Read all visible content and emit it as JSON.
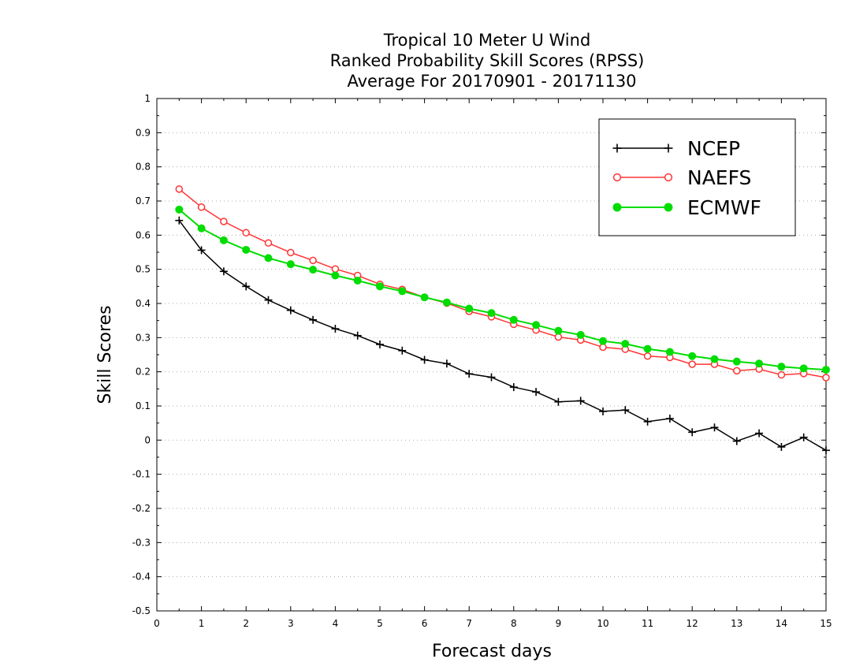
{
  "chart_data": {
    "type": "line",
    "title": [
      "Tropical 10 Meter U Wind",
      "Ranked Probability Skill Scores (RPSS)",
      "Average For 20170901 - 20171130"
    ],
    "xlabel": "Forecast days",
    "ylabel": "Skill Scores",
    "xlim": [
      0,
      15
    ],
    "ylim": [
      -0.5,
      1
    ],
    "xticks": [
      "0",
      "1",
      "2",
      "3",
      "4",
      "5",
      "6",
      "7",
      "8",
      "9",
      "10",
      "11",
      "12",
      "13",
      "14",
      "15"
    ],
    "yticks": [
      "-0.5",
      "-0.4",
      "-0.3",
      "-0.2",
      "-0.1",
      "0",
      "0.1",
      "0.2",
      "0.3",
      "0.4",
      "0.5",
      "0.6",
      "0.7",
      "0.8",
      "0.9",
      "1"
    ],
    "grid": "horizontal-dotted",
    "legend_position": "top-right",
    "x": [
      0.5,
      1,
      1.5,
      2,
      2.5,
      3,
      3.5,
      4,
      4.5,
      5,
      5.5,
      6,
      6.5,
      7,
      7.5,
      8,
      8.5,
      9,
      9.5,
      10,
      10.5,
      11,
      11.5,
      12,
      12.5,
      13,
      13.5,
      14,
      14.5,
      15
    ],
    "series": [
      {
        "name": "NCEP",
        "color": "#000000",
        "marker": "plus",
        "values": [
          0.643,
          0.556,
          0.494,
          0.45,
          0.41,
          0.38,
          0.352,
          0.326,
          0.306,
          0.28,
          0.262,
          0.235,
          0.224,
          0.194,
          0.184,
          0.155,
          0.141,
          0.112,
          0.115,
          0.084,
          0.088,
          0.054,
          0.063,
          0.023,
          0.037,
          -0.003,
          0.02,
          -0.02,
          0.008,
          -0.03
        ]
      },
      {
        "name": "NAEFS",
        "color": "#ff3333",
        "marker": "open-circle",
        "values": [
          0.735,
          0.682,
          0.64,
          0.607,
          0.577,
          0.549,
          0.526,
          0.501,
          0.482,
          0.456,
          0.441,
          0.418,
          0.401,
          0.377,
          0.361,
          0.339,
          0.322,
          0.302,
          0.293,
          0.272,
          0.266,
          0.246,
          0.242,
          0.222,
          0.222,
          0.203,
          0.208,
          0.191,
          0.195,
          0.183
        ]
      },
      {
        "name": "ECMWF",
        "color": "#00dd00",
        "marker": "filled-circle",
        "values": [
          0.675,
          0.62,
          0.585,
          0.557,
          0.533,
          0.515,
          0.499,
          0.482,
          0.467,
          0.45,
          0.436,
          0.418,
          0.403,
          0.385,
          0.372,
          0.352,
          0.337,
          0.32,
          0.308,
          0.29,
          0.282,
          0.267,
          0.258,
          0.246,
          0.237,
          0.23,
          0.224,
          0.215,
          0.21,
          0.206
        ]
      }
    ]
  }
}
